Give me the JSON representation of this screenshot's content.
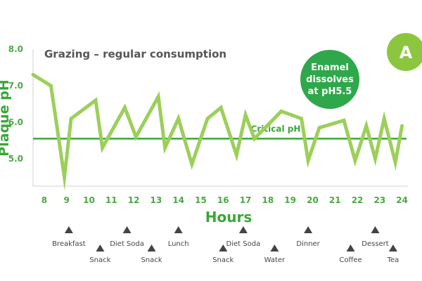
{
  "chart_data": {
    "type": "line",
    "title": "Grazing – regular consumption",
    "xlabel": "Hours",
    "ylabel": "Plaque pH",
    "xlim": [
      7.5,
      24.2
    ],
    "ylim": [
      4.25,
      8.0
    ],
    "y_ticks": [
      "8.0",
      "7.0",
      "6.0",
      "5.0"
    ],
    "y_tick_values": [
      8.0,
      7.0,
      6.0,
      5.0
    ],
    "x_ticks": [
      "8",
      "9",
      "10",
      "11",
      "12",
      "13",
      "14",
      "15",
      "16",
      "17",
      "18",
      "19",
      "20",
      "21",
      "22",
      "23",
      "24"
    ],
    "x_tick_values": [
      8,
      9,
      10,
      11,
      12,
      13,
      14,
      15,
      16,
      17,
      18,
      19,
      20,
      21,
      22,
      23,
      24
    ],
    "series": [
      {
        "color": "#9ccf5a",
        "x": [
          7.5,
          8.3,
          8.9,
          9.2,
          10.3,
          10.6,
          11.6,
          12.1,
          13.1,
          13.4,
          14.0,
          14.6,
          15.3,
          15.9,
          16.6,
          17.0,
          17.4,
          18.6,
          19.5,
          19.8,
          20.3,
          21.4,
          21.9,
          22.4,
          22.8,
          23.2,
          23.7,
          24.0
        ],
        "y": [
          7.3,
          7.0,
          4.5,
          6.1,
          6.6,
          5.3,
          6.4,
          5.6,
          6.7,
          5.3,
          6.1,
          4.85,
          6.1,
          6.4,
          5.1,
          6.2,
          5.55,
          6.3,
          6.1,
          4.95,
          5.85,
          6.05,
          4.95,
          5.9,
          5.0,
          6.1,
          4.9,
          5.9
        ]
      }
    ],
    "critical_line": {
      "label": "Critical pH",
      "value": 5.55,
      "color": "#3aa63a"
    },
    "annotation": {
      "lines": [
        "Enamel",
        "dissolves",
        "at pH5.5"
      ],
      "color": "#2ea84a"
    },
    "badge": {
      "label": "A",
      "color": "#8cc63f"
    },
    "events": [
      {
        "label": "Breakfast",
        "hour": 9.1,
        "row": "upper"
      },
      {
        "label": "Snack",
        "hour": 10.5,
        "row": "lower"
      },
      {
        "label": "Diet Soda",
        "hour": 11.7,
        "row": "upper"
      },
      {
        "label": "Snack",
        "hour": 12.8,
        "row": "lower"
      },
      {
        "label": "Lunch",
        "hour": 14.0,
        "row": "upper"
      },
      {
        "label": "Snack",
        "hour": 16.0,
        "row": "lower"
      },
      {
        "label": "Diet Soda",
        "hour": 16.9,
        "row": "upper"
      },
      {
        "label": "Water",
        "hour": 18.3,
        "row": "lower"
      },
      {
        "label": "Dinner",
        "hour": 19.8,
        "row": "upper"
      },
      {
        "label": "Coffee",
        "hour": 21.7,
        "row": "lower"
      },
      {
        "label": "Dessert",
        "hour": 22.8,
        "row": "upper"
      },
      {
        "label": "Tea",
        "hour": 23.6,
        "row": "lower"
      }
    ]
  }
}
